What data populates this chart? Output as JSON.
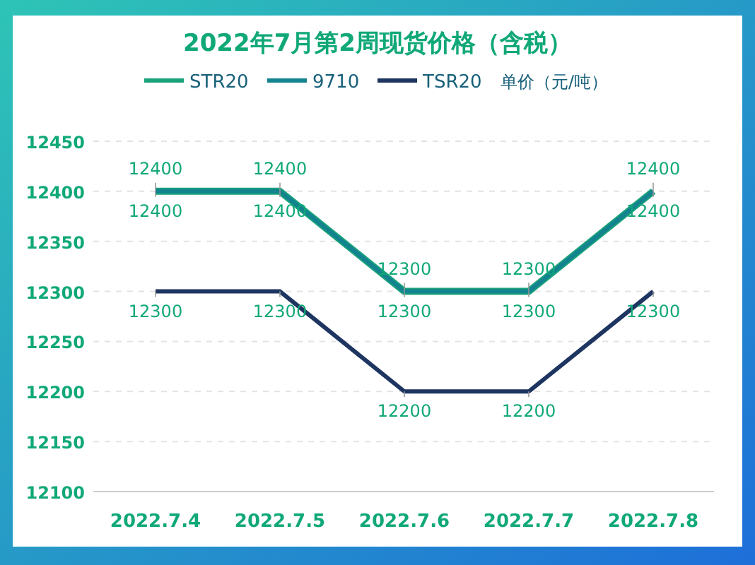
{
  "chart_data": {
    "type": "line",
    "title": "2022年7月第2周现货价格（含税）",
    "ylabel": "单价（元/吨）",
    "categories": [
      "2022.7.4",
      "2022.7.5",
      "2022.7.6",
      "2022.7.7",
      "2022.7.8"
    ],
    "series": [
      {
        "name": "STR20",
        "color": "#1aa37a",
        "values": [
          12400,
          12400,
          12300,
          12300,
          12400
        ]
      },
      {
        "name": "9710",
        "color": "#12838f",
        "values": [
          12400,
          12400,
          12300,
          12300,
          12400
        ]
      },
      {
        "name": "TSR20",
        "color": "#1d3560",
        "values": [
          12300,
          12300,
          12200,
          12200,
          12300
        ]
      }
    ],
    "ylim": [
      12100,
      12450
    ],
    "yticks": [
      12100,
      12150,
      12200,
      12250,
      12300,
      12350,
      12400,
      12450
    ],
    "grid": "y",
    "legend": "top",
    "data_labels": true,
    "marker": "none",
    "line_style": "solid"
  }
}
